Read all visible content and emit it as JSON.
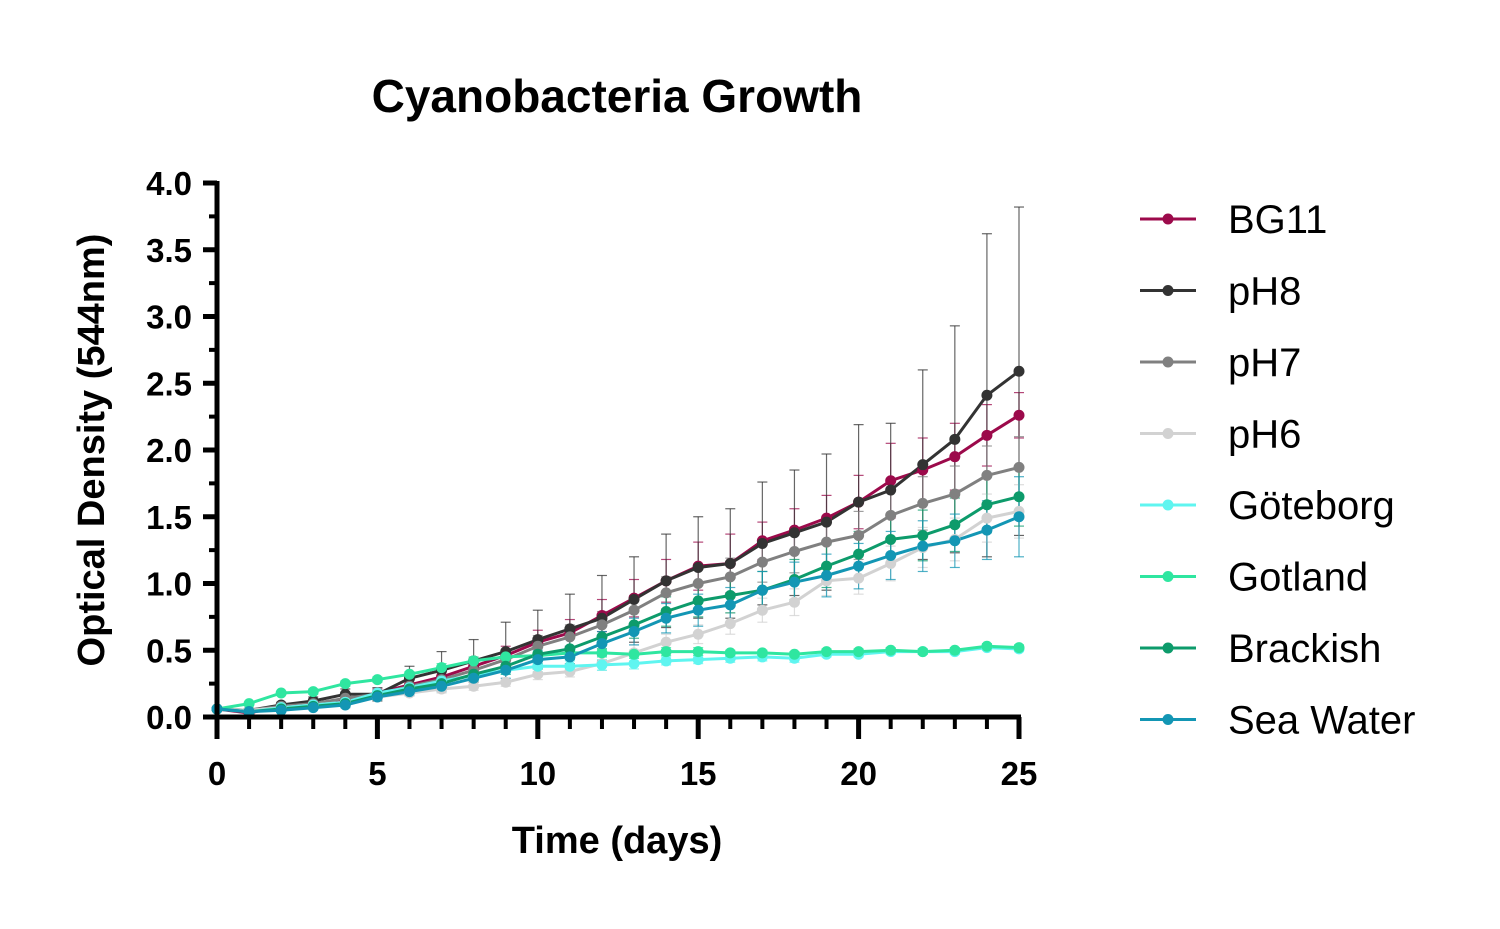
{
  "chart_data": {
    "type": "line",
    "title": "Cyanobacteria Growth",
    "xlabel": "Time (days)",
    "ylabel": "Optical Density (544nm)",
    "xlim": [
      0,
      25
    ],
    "ylim": [
      0,
      4.0
    ],
    "xticks": [
      "0",
      "5",
      "10",
      "15",
      "20",
      "25"
    ],
    "yticks": [
      "0.0",
      "0.5",
      "1.0",
      "1.5",
      "2.0",
      "2.5",
      "3.0",
      "3.5",
      "4.0"
    ],
    "grid": false,
    "legend_position": "right",
    "x": [
      0,
      1,
      2,
      3,
      4,
      5,
      6,
      7,
      8,
      9,
      10,
      11,
      12,
      13,
      14,
      15,
      16,
      17,
      18,
      19,
      20,
      21,
      22,
      23,
      24,
      25
    ],
    "series": [
      {
        "name": "BG11",
        "color": "#9c0a4b",
        "values": [
          0.06,
          0.03,
          0.08,
          0.1,
          0.12,
          0.18,
          0.24,
          0.3,
          0.38,
          0.46,
          0.56,
          0.63,
          0.76,
          0.89,
          1.02,
          1.13,
          1.15,
          1.32,
          1.4,
          1.49,
          1.61,
          1.77,
          1.85,
          1.95,
          2.11,
          2.26
        ],
        "err": [
          0.01,
          0.01,
          0.01,
          0.02,
          0.02,
          0.03,
          0.04,
          0.05,
          0.06,
          0.07,
          0.09,
          0.1,
          0.12,
          0.14,
          0.16,
          0.18,
          0.22,
          0.14,
          0.16,
          0.17,
          0.2,
          0.28,
          0.24,
          0.25,
          0.23,
          0.17
        ]
      },
      {
        "name": "pH8",
        "color": "#333333",
        "values": [
          0.06,
          0.05,
          0.09,
          0.12,
          0.17,
          0.17,
          0.29,
          0.35,
          0.42,
          0.49,
          0.58,
          0.66,
          0.74,
          0.88,
          1.02,
          1.12,
          1.15,
          1.3,
          1.38,
          1.46,
          1.61,
          1.7,
          1.89,
          2.08,
          2.41,
          2.59
        ],
        "err": [
          0.01,
          0.01,
          0.02,
          0.03,
          0.04,
          0.05,
          0.09,
          0.14,
          0.16,
          0.22,
          0.22,
          0.26,
          0.32,
          0.32,
          0.35,
          0.38,
          0.41,
          0.46,
          0.47,
          0.51,
          0.58,
          0.5,
          0.71,
          0.85,
          1.21,
          1.23
        ]
      },
      {
        "name": "pH7",
        "color": "#808080",
        "values": [
          0.06,
          0.05,
          0.08,
          0.1,
          0.14,
          0.17,
          0.23,
          0.28,
          0.35,
          0.43,
          0.53,
          0.6,
          0.69,
          0.8,
          0.93,
          1.0,
          1.05,
          1.16,
          1.24,
          1.31,
          1.36,
          1.51,
          1.6,
          1.67,
          1.81,
          1.87
        ],
        "err": [
          0.01,
          0.01,
          0.01,
          0.02,
          0.02,
          0.03,
          0.04,
          0.05,
          0.06,
          0.07,
          0.08,
          0.09,
          0.1,
          0.11,
          0.12,
          0.13,
          0.14,
          0.15,
          0.16,
          0.17,
          0.18,
          0.19,
          0.2,
          0.21,
          0.22,
          0.23
        ]
      },
      {
        "name": "pH6",
        "color": "#d2d2d2",
        "values": [
          0.06,
          0.05,
          0.07,
          0.09,
          0.11,
          0.15,
          0.18,
          0.21,
          0.23,
          0.26,
          0.32,
          0.34,
          0.4,
          0.48,
          0.56,
          0.62,
          0.7,
          0.8,
          0.86,
          1.02,
          1.04,
          1.15,
          1.27,
          1.33,
          1.49,
          1.54
        ],
        "err": [
          0.01,
          0.01,
          0.01,
          0.01,
          0.02,
          0.02,
          0.02,
          0.03,
          0.03,
          0.03,
          0.04,
          0.04,
          0.05,
          0.06,
          0.06,
          0.07,
          0.08,
          0.09,
          0.1,
          0.11,
          0.12,
          0.13,
          0.15,
          0.16,
          0.18,
          0.2
        ]
      },
      {
        "name": "Göteborg",
        "color": "#5ff5f0",
        "values": [
          0.06,
          0.04,
          0.07,
          0.09,
          0.11,
          0.18,
          0.22,
          0.27,
          0.31,
          0.35,
          0.38,
          0.38,
          0.39,
          0.4,
          0.42,
          0.43,
          0.44,
          0.45,
          0.44,
          0.47,
          0.47,
          0.49,
          0.49,
          0.49,
          0.52,
          0.51
        ],
        "err": [
          0.01,
          0.01,
          0.01,
          0.01,
          0.02,
          0.02,
          0.02,
          0.03,
          0.03,
          0.03,
          0.04,
          0.04,
          0.04,
          0.04,
          0.03,
          0.03,
          0.03,
          0.03,
          0.03,
          0.02,
          0.02,
          0.02,
          0.02,
          0.02,
          0.02,
          0.02
        ]
      },
      {
        "name": "Gotland",
        "color": "#2fe6a0",
        "values": [
          0.06,
          0.1,
          0.18,
          0.19,
          0.25,
          0.28,
          0.32,
          0.37,
          0.42,
          0.45,
          0.46,
          0.48,
          0.48,
          0.47,
          0.49,
          0.49,
          0.48,
          0.48,
          0.47,
          0.49,
          0.49,
          0.5,
          0.49,
          0.5,
          0.53,
          0.52
        ],
        "err": [
          0.01,
          0.01,
          0.01,
          0.02,
          0.02,
          0.02,
          0.02,
          0.03,
          0.03,
          0.03,
          0.03,
          0.03,
          0.03,
          0.03,
          0.03,
          0.03,
          0.02,
          0.02,
          0.02,
          0.02,
          0.02,
          0.02,
          0.02,
          0.02,
          0.02,
          0.02
        ]
      },
      {
        "name": "Brackish",
        "color": "#0d9b6b",
        "values": [
          0.06,
          0.04,
          0.06,
          0.08,
          0.1,
          0.16,
          0.21,
          0.25,
          0.32,
          0.38,
          0.47,
          0.51,
          0.6,
          0.69,
          0.79,
          0.87,
          0.91,
          0.95,
          1.03,
          1.13,
          1.22,
          1.33,
          1.36,
          1.44,
          1.59,
          1.65
        ],
        "err": [
          0.01,
          0.01,
          0.01,
          0.01,
          0.02,
          0.02,
          0.03,
          0.04,
          0.05,
          0.06,
          0.07,
          0.08,
          0.09,
          0.1,
          0.11,
          0.12,
          0.13,
          0.14,
          0.15,
          0.16,
          0.17,
          0.18,
          0.19,
          0.2,
          0.21,
          0.22
        ]
      },
      {
        "name": "Sea Water",
        "color": "#1396b4",
        "values": [
          0.06,
          0.04,
          0.05,
          0.07,
          0.09,
          0.15,
          0.19,
          0.23,
          0.29,
          0.35,
          0.43,
          0.45,
          0.55,
          0.64,
          0.74,
          0.8,
          0.84,
          0.95,
          1.01,
          1.06,
          1.13,
          1.21,
          1.28,
          1.32,
          1.4,
          1.5
        ],
        "err": [
          0.01,
          0.01,
          0.01,
          0.01,
          0.02,
          0.02,
          0.03,
          0.04,
          0.05,
          0.06,
          0.07,
          0.08,
          0.09,
          0.1,
          0.11,
          0.12,
          0.13,
          0.14,
          0.15,
          0.16,
          0.17,
          0.18,
          0.19,
          0.2,
          0.22,
          0.3
        ]
      }
    ]
  }
}
